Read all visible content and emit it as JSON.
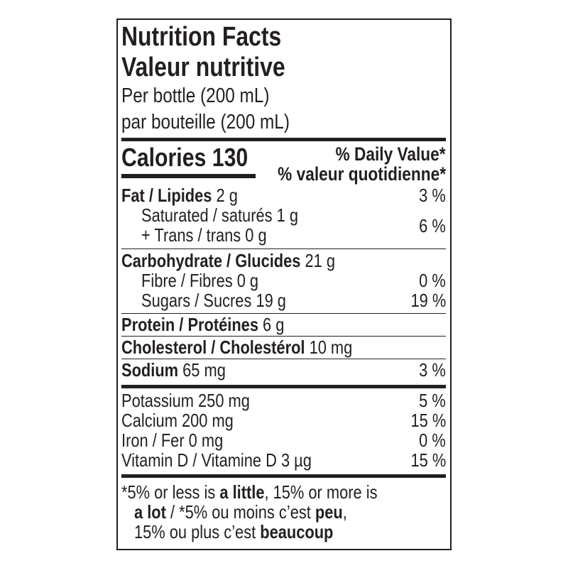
{
  "title_en": "Nutrition Facts",
  "title_fr": "Valeur nutritive",
  "serving_en": "Per bottle (200 mL)",
  "serving_fr": "par bouteille (200 mL)",
  "calories": {
    "label": "Calories",
    "value": "130"
  },
  "dv_header_en": "% Daily Value*",
  "dv_header_fr": "% valeur quotidienne*",
  "rows": {
    "fat": {
      "label": "Fat / Lipides",
      "amount": "2 g",
      "dv": "3 %"
    },
    "saturated": {
      "label": "Saturated / saturés 1 g"
    },
    "trans": {
      "label": "+ Trans / trans 0 g",
      "dv": "6 %"
    },
    "carb": {
      "label": "Carbohydrate / Glucides",
      "amount": "21 g"
    },
    "fibre": {
      "label": "Fibre / Fibres 0 g",
      "dv": "0 %"
    },
    "sugars": {
      "label": "Sugars / Sucres 19 g",
      "dv": "19 %"
    },
    "protein": {
      "label": "Protein / Protéines",
      "amount": "6 g"
    },
    "cholesterol": {
      "label": "Cholesterol / Cholestérol",
      "amount": "10 mg"
    },
    "sodium": {
      "label": "Sodium",
      "amount": "65 mg",
      "dv": "3 %"
    },
    "potassium": {
      "label": "Potassium 250 mg",
      "dv": "5 %"
    },
    "calcium": {
      "label": "Calcium 200 mg",
      "dv": "15 %"
    },
    "iron": {
      "label": "Iron / Fer 0 mg",
      "dv": "0 %"
    },
    "vitd": {
      "label": "Vitamin D / Vitamine D 3 µg",
      "dv": "15 %"
    }
  },
  "footnote": {
    "p1": "*5% or less is ",
    "b1": "a little",
    "p2": ", 15% or more is",
    "b2": "a lot",
    "p3": " / *5% ou moins c’est ",
    "b3": "peu",
    "p4": ",",
    "p5": "15% ou plus c’est ",
    "b4": "beaucoup"
  }
}
